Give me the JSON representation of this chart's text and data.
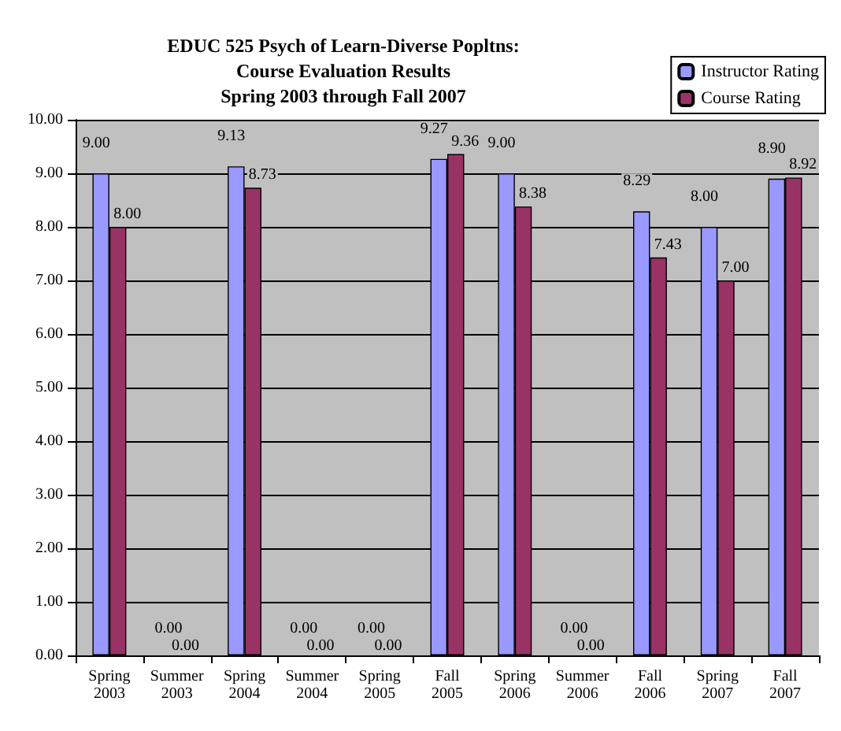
{
  "chart_data": {
    "type": "bar",
    "title": "EDUC 525 Psych of Learn-Diverse Popltns:\nCourse Evaluation Results\nSpring 2003 through Fall 2007",
    "categories": [
      "Spring 2003",
      "Summer 2003",
      "Spring 2004",
      "Summer 2004",
      "Spring 2005",
      "Fall 2005",
      "Spring 2006",
      "Summer 2006",
      "Fall 2006",
      "Spring 2007",
      "Fall 2007"
    ],
    "series": [
      {
        "name": "Instructor Rating",
        "color": "#9999ff",
        "values": [
          9.0,
          0,
          9.13,
          0,
          0,
          9.27,
          9.0,
          0,
          8.29,
          8.0,
          8.9
        ],
        "value_labels": [
          "9.00",
          "0.00",
          "9.13",
          "0.00",
          "0.00",
          "9.27",
          "9.00",
          "0.00",
          "8.29",
          "8.00",
          "8.90"
        ]
      },
      {
        "name": "Course Rating",
        "color": "#993366",
        "values": [
          8.0,
          0,
          8.73,
          0,
          0,
          9.36,
          8.38,
          0,
          7.43,
          7.0,
          8.92
        ],
        "value_labels": [
          "8.00",
          "0.00",
          "8.73",
          "0.00",
          "0.00",
          "9.36",
          "8.38",
          "0.00",
          "7.43",
          "7.00",
          "8.92"
        ]
      }
    ],
    "ylim": [
      0,
      10
    ],
    "yticks": [
      {
        "value": 0,
        "label": "0.00"
      },
      {
        "value": 1,
        "label": "1.00"
      },
      {
        "value": 2,
        "label": "2.00"
      },
      {
        "value": 3,
        "label": "3.00"
      },
      {
        "value": 4,
        "label": "4.00"
      },
      {
        "value": 5,
        "label": "5.00"
      },
      {
        "value": 6,
        "label": "6.00"
      },
      {
        "value": 7,
        "label": "7.00"
      },
      {
        "value": 8,
        "label": "8.00"
      },
      {
        "value": 9,
        "label": "9.00"
      },
      {
        "value": 10,
        "label": "10.00"
      }
    ],
    "grid": "y",
    "legend": "top right"
  }
}
